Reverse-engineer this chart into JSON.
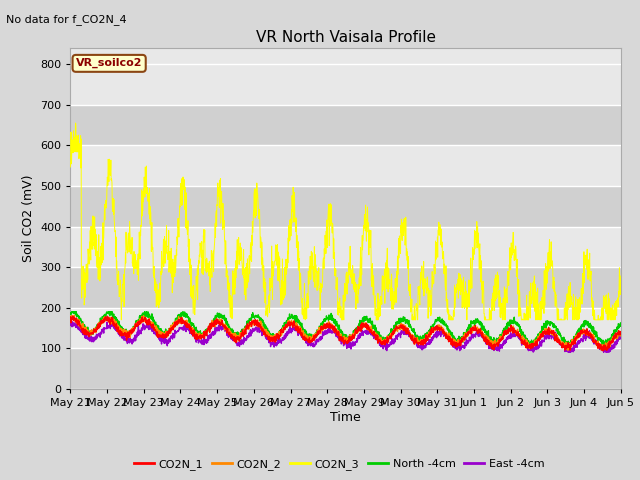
{
  "title": "VR North Vaisala Profile",
  "subtitle": "No data for f_CO2N_4",
  "ylabel": "Soil CO2 (mV)",
  "xlabel": "Time",
  "ylim": [
    0,
    840
  ],
  "yticks": [
    0,
    100,
    200,
    300,
    400,
    500,
    600,
    700,
    800
  ],
  "fig_bg_color": "#d8d8d8",
  "plot_bg_color": "#e8e8e8",
  "band_color": "#d0d0d0",
  "legend_label": "VR_soilco2",
  "legend_box_color": "#ffffcc",
  "legend_box_edge": "#8b4513",
  "series_colors": {
    "CO2N_1": "#ff0000",
    "CO2N_2": "#ff8800",
    "CO2N_3": "#ffff00",
    "North_4cm": "#00cc00",
    "East_4cm": "#9900cc"
  },
  "x_tick_labels": [
    "May 21",
    "May 22",
    "May 23",
    "May 24",
    "May 25",
    "May 26",
    "May 27",
    "May 28",
    "May 29",
    "May 30",
    "May 31",
    "Jun 1",
    "Jun 2",
    "Jun 3",
    "Jun 4",
    "Jun 5"
  ],
  "n_points": 2000,
  "n_days": 15
}
